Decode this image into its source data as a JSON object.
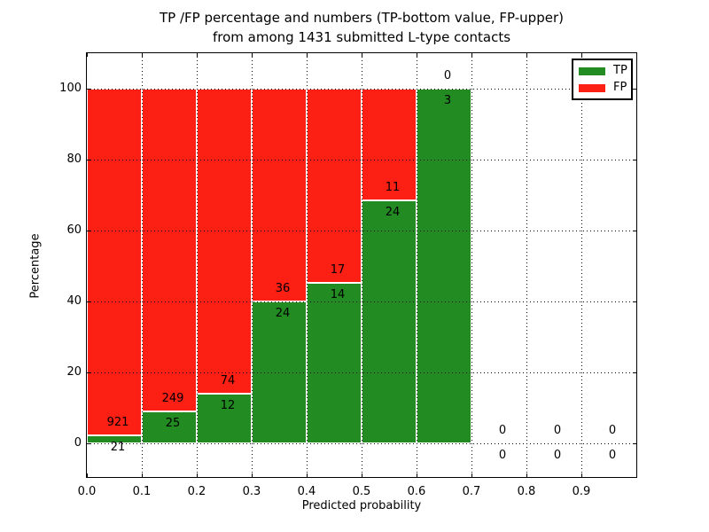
{
  "figure": {
    "title_line1": "TP /FP percentage and numbers (TP-bottom value, FP-upper)",
    "title_line2": "from among 1431 submitted L-type contacts",
    "xlabel": "Predicted probability",
    "ylabel": "Percentage"
  },
  "legend": {
    "items": [
      {
        "label": "TP",
        "color": "#228b22"
      },
      {
        "label": "FP",
        "color": "#fc1f14"
      }
    ]
  },
  "colors": {
    "tp": "#228b22",
    "fp": "#fc1f14",
    "frame": "#000000",
    "grid": "#000000",
    "background": "#ffffff",
    "text": "#000000",
    "bar_edge": "#ffffff"
  },
  "chart_data": {
    "type": "bar",
    "stacked": true,
    "title": "TP /FP percentage and numbers (TP-bottom value, FP-upper) from among 1431 submitted L-type contacts",
    "xlabel": "Predicted probability",
    "ylabel": "Percentage",
    "total_contacts": 1431,
    "bin_edges": [
      0.0,
      0.1,
      0.2,
      0.3,
      0.4,
      0.5,
      0.6,
      0.7,
      0.8,
      0.9,
      1.0
    ],
    "xtick_labels": [
      "0.0",
      "0.1",
      "0.2",
      "0.3",
      "0.4",
      "0.5",
      "0.6",
      "0.7",
      "0.8",
      "0.9"
    ],
    "yticks": [
      0,
      20,
      40,
      60,
      80,
      100
    ],
    "xlim": [
      0.0,
      1.0
    ],
    "ylim": [
      -9.5,
      110
    ],
    "grid": "dotted",
    "legend_position": "upper right",
    "series": [
      {
        "name": "TP",
        "color": "#228b22",
        "counts": [
          21,
          25,
          12,
          24,
          14,
          24,
          3,
          0,
          0,
          0
        ]
      },
      {
        "name": "FP",
        "color": "#fc1f14",
        "counts": [
          921,
          249,
          74,
          36,
          17,
          11,
          0,
          0,
          0,
          0
        ]
      }
    ],
    "tp_percent": [
      2.2,
      9.1,
      14.0,
      40.0,
      45.2,
      68.6,
      100.0,
      0.0,
      0.0,
      0.0
    ]
  }
}
